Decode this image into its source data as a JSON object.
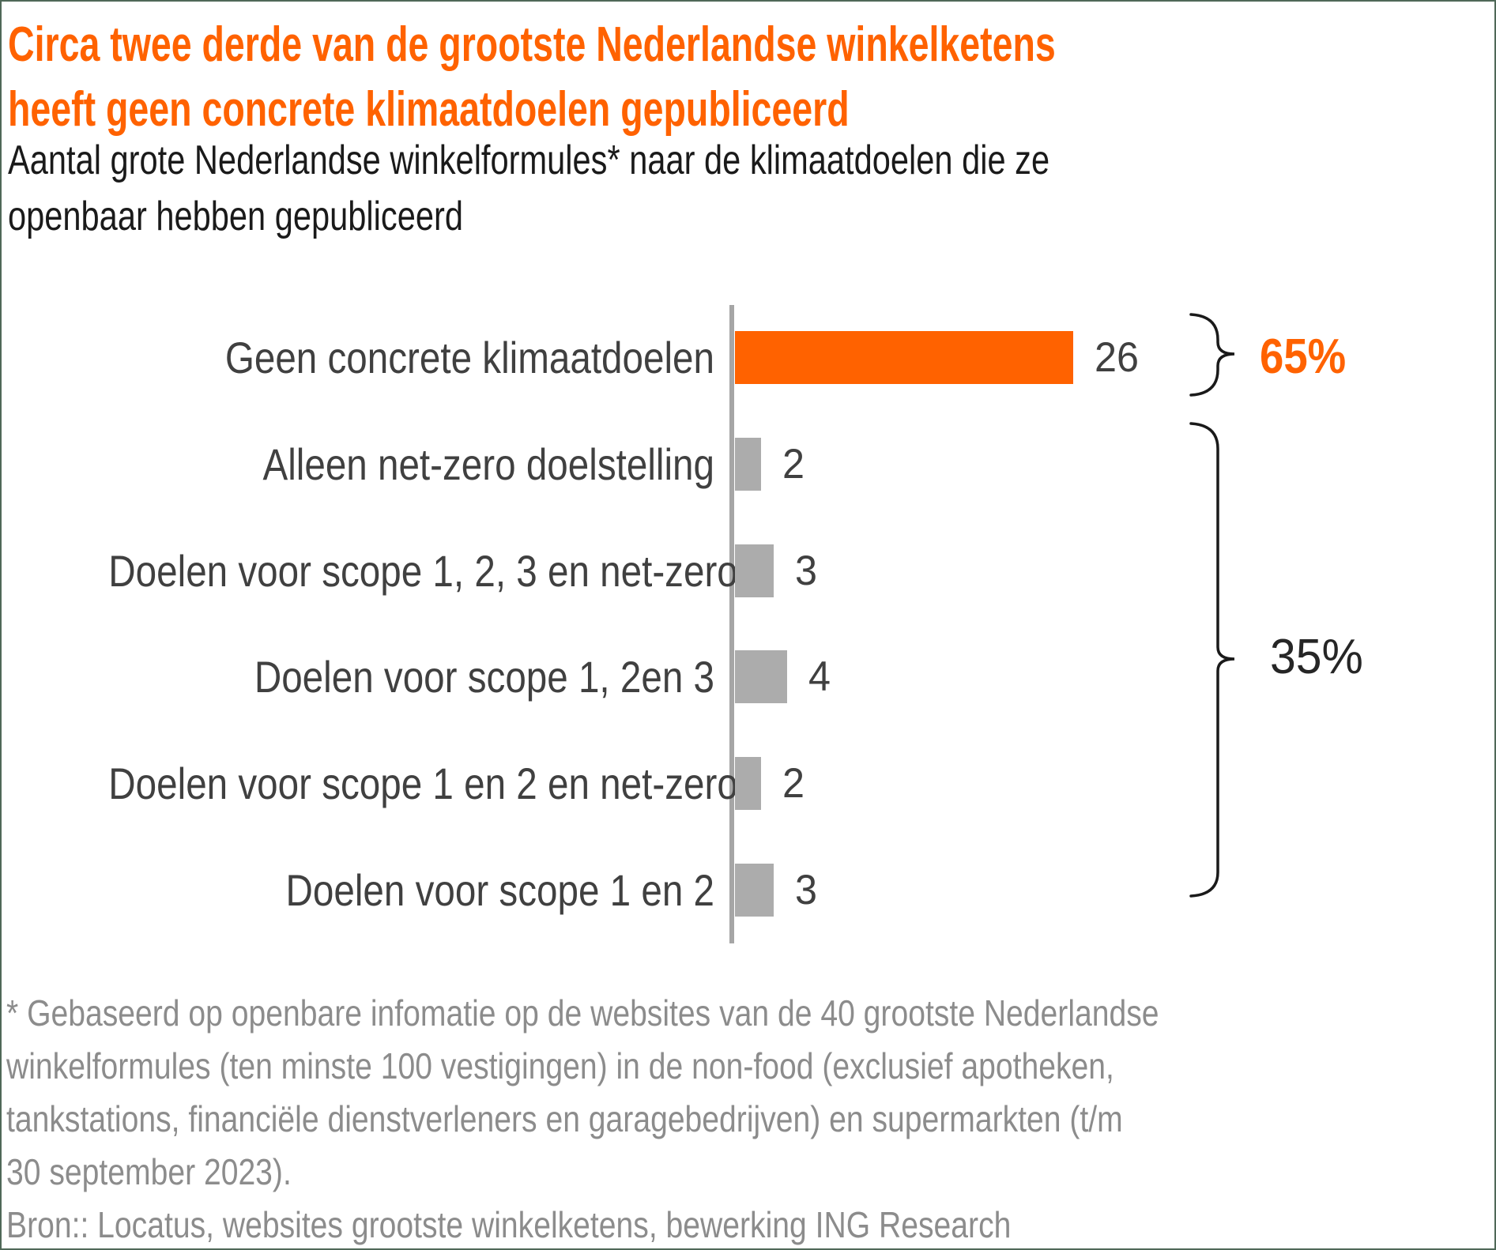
{
  "header": {
    "title_lines": [
      "Circa twee derde van de grootste Nederlandse winkelketens",
      "heeft geen concrete klimaatdoelen gepubliceerd"
    ],
    "subtitle_lines": [
      "Aantal grote Nederlandse winkelformules* naar de klimaatdoelen die ze",
      "openbaar hebben gepubliceerd"
    ],
    "title_color": "#FF6200",
    "subtitle_color": "#1a1a1a"
  },
  "chart": {
    "rows": [
      {
        "label": "Geen concrete klimaatdoelen",
        "value": 26,
        "highlight": true
      },
      {
        "label": "Alleen net-zero doelstelling",
        "value": 2,
        "highlight": false
      },
      {
        "label": "Doelen voor scope 1, 2, 3 en net-zero",
        "value": 3,
        "highlight": false
      },
      {
        "label": "Doelen voor scope 1, 2en 3",
        "value": 4,
        "highlight": false
      },
      {
        "label": "Doelen voor scope 1 en 2 en net-zero",
        "value": 2,
        "highlight": false
      },
      {
        "label": "Doelen voor scope 1 en 2",
        "value": 3,
        "highlight": false
      }
    ],
    "colors": {
      "highlight_bar": "#FF6200",
      "bar": "#acacac",
      "axis": "#a6a6a6",
      "text": "#404040",
      "bracket": "#1a1a1a"
    },
    "annotations": {
      "top_pct": "65%",
      "bottom_pct": "35%"
    }
  },
  "footnote": {
    "lines": [
      "* Gebaseerd op openbare infomatie op de websites van de 40 grootste Nederlandse",
      "winkelformules (ten minste 100 vestigingen) in de non-food (exclusief apotheken,",
      "tankstations, financiële dienstverleners en garagebedrijven) en supermarkten (t/m",
      "30 september 2023)."
    ],
    "source": "Bron:: Locatus, websites grootste winkelketens, bewerking ING Research",
    "color": "#8c8c8c"
  },
  "chart_data": {
    "type": "bar",
    "orientation": "horizontal",
    "title": "Circa twee derde van de grootste Nederlandse winkelketens heeft geen concrete klimaatdoelen gepubliceerd",
    "subtitle": "Aantal grote Nederlandse winkelformules* naar de klimaatdoelen die ze openbaar hebben gepubliceerd",
    "categories": [
      "Geen concrete klimaatdoelen",
      "Alleen net-zero doelstelling",
      "Doelen voor scope 1, 2, 3 en net-zero",
      "Doelen voor scope 1, 2en 3",
      "Doelen voor scope 1 en 2 en net-zero",
      "Doelen voor scope 1 en 2"
    ],
    "values": [
      26,
      2,
      3,
      4,
      2,
      3
    ],
    "data_labels": [
      "26",
      "2",
      "3",
      "4",
      "2",
      "3"
    ],
    "xlim": [
      0,
      26
    ],
    "grid": false,
    "legend": false,
    "highlight_index": 0,
    "bracket_annotations": [
      {
        "label": "65%",
        "covers_rows": [
          0
        ],
        "color": "#FF6200"
      },
      {
        "label": "35%",
        "covers_rows": [
          1,
          2,
          3,
          4,
          5
        ],
        "color": "#262626"
      }
    ]
  }
}
